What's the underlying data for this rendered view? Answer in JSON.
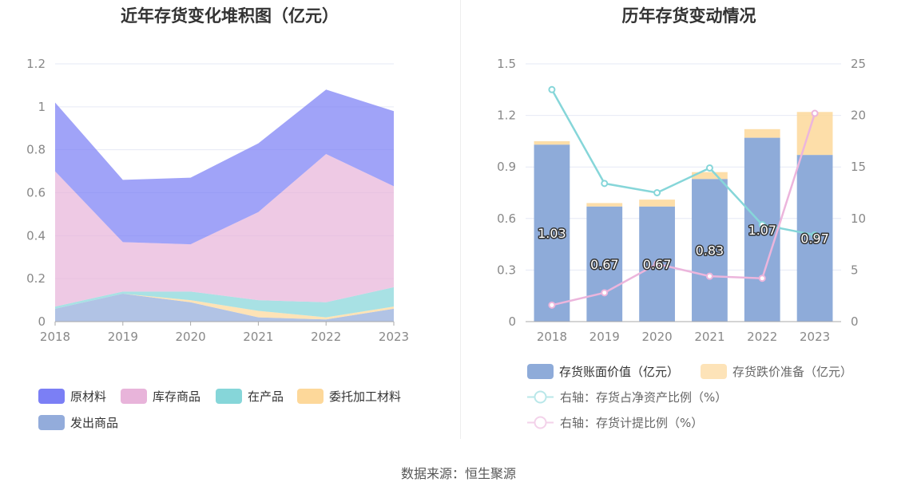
{
  "left": {
    "title": "近年存货变化堆积图（亿元）",
    "legend": [
      {
        "label": "原材料",
        "color": "#7b7ff5"
      },
      {
        "label": "库存商品",
        "color": "#e8b4da"
      },
      {
        "label": "在产品",
        "color": "#86d6d9"
      },
      {
        "label": "委托加工材料",
        "color": "#fdd89a"
      },
      {
        "label": "发出商品",
        "color": "#93acdb"
      }
    ]
  },
  "right": {
    "title": "历年存货变动情况",
    "legend": [
      {
        "label": "存货账面价值（亿元）",
        "color": "#8eabd9"
      },
      {
        "label": "存货跌价准备（亿元）",
        "color": "#fde3b8"
      },
      {
        "label": "右轴：存货占净资产比例（%）",
        "color": "#86d6d9"
      },
      {
        "label": "右轴：存货计提比例（%）",
        "color": "#ecb5dc"
      }
    ]
  },
  "source": "数据来源：恒生聚源",
  "chart_data": [
    {
      "type": "area",
      "stacked": true,
      "title": "近年存货变化堆积图（亿元）",
      "x": [
        "2018",
        "2019",
        "2020",
        "2021",
        "2022",
        "2023"
      ],
      "ylim": [
        0,
        1.2
      ],
      "yticks": [
        "0",
        "0.2",
        "0.4",
        "0.6",
        "0.8",
        "1",
        "1.2"
      ],
      "series": [
        {
          "name": "发出商品",
          "values": [
            0.06,
            0.13,
            0.09,
            0.02,
            0.01,
            0.06
          ],
          "color": "#93acdb"
        },
        {
          "name": "委托加工材料",
          "values": [
            0.0,
            0.0,
            0.01,
            0.03,
            0.01,
            0.01
          ],
          "color": "#fdd89a"
        },
        {
          "name": "在产品",
          "values": [
            0.01,
            0.01,
            0.04,
            0.05,
            0.07,
            0.09
          ],
          "color": "#86d6d9"
        },
        {
          "name": "库存商品",
          "values": [
            0.63,
            0.23,
            0.22,
            0.41,
            0.69,
            0.47
          ],
          "color": "#e8b4da"
        },
        {
          "name": "原材料",
          "values": [
            0.32,
            0.29,
            0.31,
            0.32,
            0.3,
            0.35
          ],
          "color": "#7b7ff5"
        }
      ],
      "grid": true,
      "legend_position": "bottom"
    },
    {
      "type": "bar",
      "stacked": true,
      "title": "历年存货变动情况",
      "categories": [
        "2018",
        "2019",
        "2020",
        "2021",
        "2022",
        "2023"
      ],
      "ylim": [
        0,
        1.5
      ],
      "yticks": [
        "0",
        "0.3",
        "0.6",
        "0.9",
        "1.2",
        "1.5"
      ],
      "y2lim": [
        0,
        25
      ],
      "y2ticks": [
        "0",
        "5",
        "10",
        "15",
        "20",
        "25"
      ],
      "series": [
        {
          "name": "存货账面价值（亿元）",
          "values": [
            1.03,
            0.67,
            0.67,
            0.83,
            1.07,
            0.97
          ],
          "labels": [
            "1.03",
            "0.67",
            "0.67",
            "0.83",
            "1.07",
            "0.97"
          ],
          "color": "#8eabd9"
        },
        {
          "name": "存货跌价准备（亿元）",
          "values": [
            0.02,
            0.02,
            0.04,
            0.04,
            0.05,
            0.25
          ],
          "color": "#fdd89a"
        }
      ],
      "line_series": [
        {
          "name": "右轴：存货占净资产比例（%）",
          "axis": "right",
          "values": [
            22.5,
            13.4,
            12.5,
            14.9,
            9.4,
            8.4
          ],
          "color": "#86d6d9"
        },
        {
          "name": "右轴：存货计提比例（%）",
          "axis": "right",
          "values": [
            1.6,
            2.8,
            5.6,
            4.4,
            4.2,
            20.2
          ],
          "color": "#ecb5dc"
        }
      ],
      "grid": true,
      "legend_position": "bottom"
    }
  ]
}
